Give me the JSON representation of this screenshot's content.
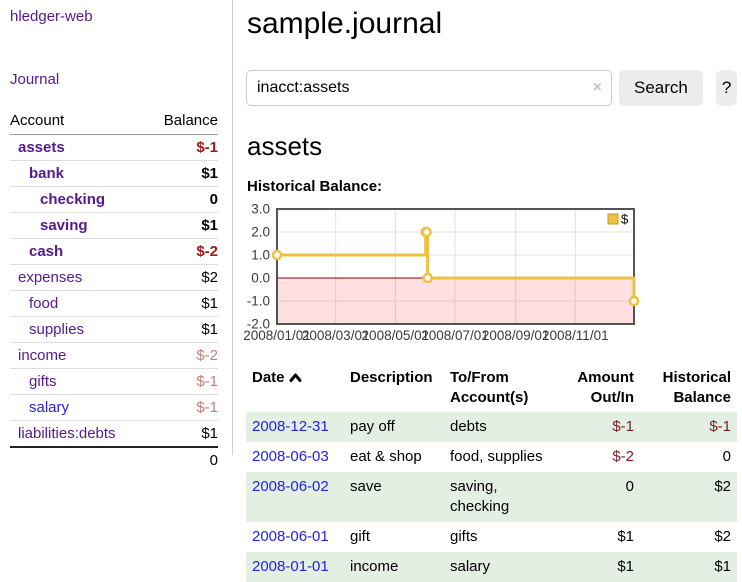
{
  "app": {
    "brand": "hledger-web",
    "nav": {
      "journal": "Journal"
    }
  },
  "sidebar": {
    "header": {
      "account": "Account",
      "balance": "Balance"
    },
    "accounts": [
      {
        "name": "assets",
        "balance": "$-1",
        "depth": 1,
        "bold": true,
        "neg": "strong"
      },
      {
        "name": "bank",
        "balance": "$1",
        "depth": 2,
        "bold": true
      },
      {
        "name": "checking",
        "balance": "0",
        "depth": 3,
        "bold": true
      },
      {
        "name": "saving",
        "balance": "$1",
        "depth": 3,
        "bold": true
      },
      {
        "name": "cash",
        "balance": "$-2",
        "depth": 2,
        "bold": true,
        "neg": "strong"
      },
      {
        "name": "expenses",
        "balance": "$2",
        "depth": 1
      },
      {
        "name": "food",
        "balance": "$1",
        "depth": 2
      },
      {
        "name": "supplies",
        "balance": "$1",
        "depth": 2
      },
      {
        "name": "income",
        "balance": "$-2",
        "depth": 1,
        "neg": "soft"
      },
      {
        "name": "gifts",
        "balance": "$-1",
        "depth": 2,
        "neg": "soft"
      },
      {
        "name": "salary",
        "balance": "$-1",
        "depth": 2,
        "neg": "soft",
        "link": "new"
      },
      {
        "name": "liabilities:debts",
        "balance": "$1",
        "depth": 1
      }
    ],
    "total": "0"
  },
  "main": {
    "title": "sample.journal",
    "heading": "assets",
    "chart_label": "Historical Balance:"
  },
  "search": {
    "value": "inacct:assets",
    "clear_label": "×",
    "submit_label": "Search",
    "help_label": "?"
  },
  "chart_data": {
    "type": "line",
    "step": true,
    "title": "Historical Balance",
    "series": [
      {
        "name": "$",
        "color": "#edc240",
        "points": [
          [
            "2008-01-01",
            1
          ],
          [
            "2008-06-01",
            2
          ],
          [
            "2008-06-02",
            2
          ],
          [
            "2008-06-03",
            0
          ],
          [
            "2008-12-31",
            -1
          ]
        ]
      }
    ],
    "xrange": [
      "2008-01-01",
      "2008-12-31"
    ],
    "ylim": [
      -2,
      3
    ],
    "yticks": [
      3.0,
      2.0,
      1.0,
      0.0,
      -1.0,
      -2.0
    ],
    "xticks": [
      {
        "date": "2008-01-01",
        "label": "2008/01/01"
      },
      {
        "date": "2008-03-01",
        "label": "2008/03/01"
      },
      {
        "date": "2008-05-01",
        "label": "2008/05/01"
      },
      {
        "date": "2008-07-01",
        "label": "2008/07/01"
      },
      {
        "date": "2008-09-01",
        "label": "2008/09/01"
      },
      {
        "date": "2008-11-01",
        "label": "2008/11/01"
      }
    ],
    "legend": {
      "label": "$",
      "position": "top-right"
    },
    "grid": true,
    "negative_region": true,
    "zero_line": true
  },
  "register": {
    "columns": {
      "date": "Date",
      "description": "Description",
      "accounts": "To/From Account(s)",
      "amount": "Amount Out/In",
      "balance": "Historical Balance"
    },
    "sort": {
      "column": "date",
      "direction": "ascending",
      "icon": "chevron-up-icon"
    },
    "rows": [
      {
        "date": "2008-12-31",
        "description": "pay off",
        "accounts": "debts",
        "amount": "$-1",
        "balance": "$-1"
      },
      {
        "date": "2008-06-03",
        "description": "eat & shop",
        "accounts": "food, supplies",
        "amount": "$-2",
        "balance": "0"
      },
      {
        "date": "2008-06-02",
        "description": "save",
        "accounts": "saving, checking",
        "amount": "0",
        "balance": "$2"
      },
      {
        "date": "2008-06-01",
        "description": "gift",
        "accounts": "gifts",
        "amount": "$1",
        "balance": "$2"
      },
      {
        "date": "2008-01-01",
        "description": "income",
        "accounts": "salary",
        "amount": "$1",
        "balance": "$1"
      }
    ]
  },
  "colors": {
    "visited_link_purple": "#551a8b",
    "link_blue": "#2323dc",
    "negative_strong": "#a01818",
    "negative_soft": "#c27e7e",
    "table_stripe_green": "#e4efe4",
    "series_gold": "#edc240",
    "zero_line_red": "#8b0000",
    "negative_region_pink": "#fbdcdc",
    "chart_border_gray": "#545454",
    "button_gray": "#ececec"
  }
}
